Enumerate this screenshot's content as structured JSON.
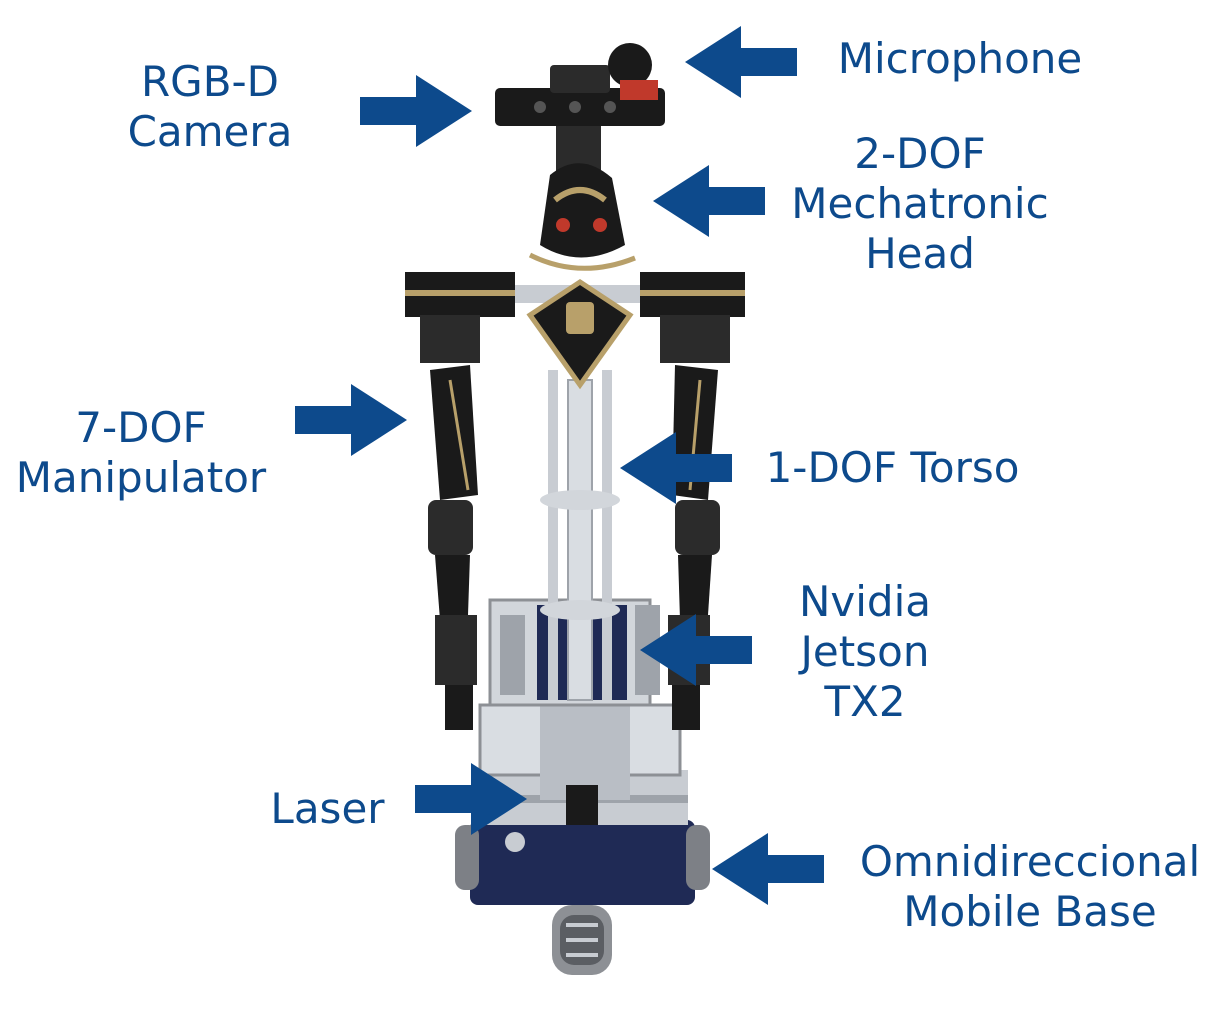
{
  "colors": {
    "label": "#0d4a8c",
    "arrow": "#0d4a8c",
    "robot_dark": "#1a1a1a",
    "robot_gold": "#b8a06a",
    "robot_metal": "#c8ccd2",
    "base_blue": "#1f2a55"
  },
  "labels": {
    "microphone": [
      "Microphone"
    ],
    "rgbd_camera": [
      "RGB-D",
      "Camera"
    ],
    "head": [
      "2-DOF",
      "Mechatronic",
      "Head"
    ],
    "manipulator": [
      "7-DOF",
      "Manipulator"
    ],
    "torso": [
      "1-DOF Torso"
    ],
    "jetson": [
      "Nvidia",
      "Jetson",
      "TX2"
    ],
    "laser": [
      "Laser"
    ],
    "base": [
      "Omnidireccional",
      "Mobile Base"
    ]
  },
  "arrows": {
    "microphone": "left",
    "rgbd_camera": "right",
    "head": "left",
    "manipulator": "right",
    "torso": "left",
    "jetson": "left",
    "laser": "right",
    "base": "left"
  }
}
